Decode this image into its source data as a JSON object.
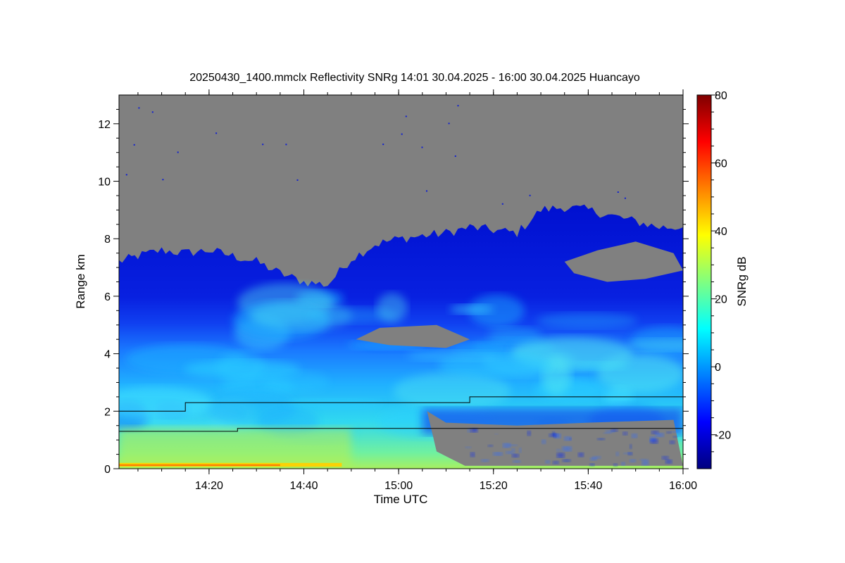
{
  "chart_data": {
    "type": "heatmap",
    "title": "20250430_1400.mmclx Reflectivity SNRg   14:01 30.04.2025 - 16:00 30.04.2025 Huancayo",
    "xlabel": "Time UTC",
    "ylabel": "Range km",
    "xlim": [
      "14:01",
      "16:00"
    ],
    "ylim": [
      0,
      13
    ],
    "x_ticks": [
      {
        "value": "14:20",
        "label": "14:20"
      },
      {
        "value": "14:40",
        "label": "14:40"
      },
      {
        "value": "15:00",
        "label": "15:00"
      },
      {
        "value": "15:20",
        "label": "15:20"
      },
      {
        "value": "15:40",
        "label": "15:40"
      },
      {
        "value": "16:00",
        "label": "16:00"
      }
    ],
    "y_ticks": [
      {
        "value": 0,
        "label": "0"
      },
      {
        "value": 2,
        "label": "2"
      },
      {
        "value": 4,
        "label": "4"
      },
      {
        "value": 6,
        "label": "6"
      },
      {
        "value": 8,
        "label": "8"
      },
      {
        "value": 10,
        "label": "10"
      },
      {
        "value": 12,
        "label": "12"
      }
    ],
    "colorbar": {
      "label": "SNRg dB",
      "range": [
        -30,
        80
      ],
      "ticks": [
        {
          "value": -20,
          "label": "-20"
        },
        {
          "value": 0,
          "label": "0"
        },
        {
          "value": 20,
          "label": "20"
        },
        {
          "value": 40,
          "label": "40"
        },
        {
          "value": 60,
          "label": "60"
        },
        {
          "value": 80,
          "label": "80"
        }
      ],
      "colors": [
        "#00007f",
        "#0000ff",
        "#0080ff",
        "#00ffff",
        "#80ff80",
        "#ffff00",
        "#ff8000",
        "#ff0000",
        "#7f0000"
      ]
    },
    "no_signal_color": "#808080",
    "cloud_top_km": [
      {
        "t": "14:01",
        "km": 7.2
      },
      {
        "t": "14:05",
        "km": 7.4
      },
      {
        "t": "14:10",
        "km": 7.6
      },
      {
        "t": "14:15",
        "km": 7.5
      },
      {
        "t": "14:20",
        "km": 7.6
      },
      {
        "t": "14:25",
        "km": 7.4
      },
      {
        "t": "14:30",
        "km": 7.2
      },
      {
        "t": "14:35",
        "km": 6.8
      },
      {
        "t": "14:40",
        "km": 6.5
      },
      {
        "t": "14:45",
        "km": 6.4
      },
      {
        "t": "14:50",
        "km": 7.3
      },
      {
        "t": "14:55",
        "km": 7.8
      },
      {
        "t": "15:00",
        "km": 8.0
      },
      {
        "t": "15:05",
        "km": 8.1
      },
      {
        "t": "15:10",
        "km": 8.2
      },
      {
        "t": "15:15",
        "km": 8.4
      },
      {
        "t": "15:20",
        "km": 8.3
      },
      {
        "t": "15:25",
        "km": 8.2
      },
      {
        "t": "15:30",
        "km": 9.0
      },
      {
        "t": "15:35",
        "km": 9.1
      },
      {
        "t": "15:40",
        "km": 9.0
      },
      {
        "t": "15:45",
        "km": 8.8
      },
      {
        "t": "15:50",
        "km": 8.6
      },
      {
        "t": "15:55",
        "km": 8.4
      },
      {
        "t": "16:00",
        "km": 8.4
      }
    ],
    "lines": [
      {
        "points": [
          {
            "t": "14:01",
            "km": 2.0
          },
          {
            "t": "14:15",
            "km": 2.0
          },
          {
            "t": "14:15",
            "km": 2.3
          },
          {
            "t": "15:15",
            "km": 2.3
          },
          {
            "t": "15:15",
            "km": 2.5
          },
          {
            "t": "16:00",
            "km": 2.5
          }
        ]
      },
      {
        "points": [
          {
            "t": "14:01",
            "km": 1.3
          },
          {
            "t": "14:26",
            "km": 1.3
          },
          {
            "t": "14:26",
            "km": 1.4
          },
          {
            "t": "16:00",
            "km": 1.4
          }
        ]
      }
    ]
  }
}
